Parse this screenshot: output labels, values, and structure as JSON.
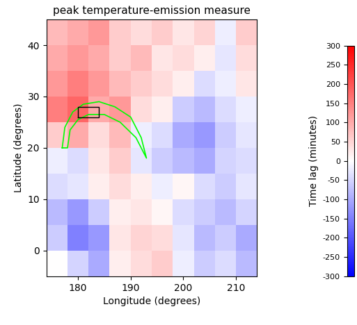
{
  "chart_data": {
    "type": "heatmap",
    "title": "peak temperature-emission measure",
    "x_label": "Longitude (degrees)",
    "y_label": "Latitude (degrees)",
    "x": [
      174,
      178,
      182,
      186,
      190,
      194,
      198,
      202,
      206,
      210,
      214
    ],
    "y": [
      -5,
      0,
      5,
      10,
      15,
      20,
      25,
      30,
      35,
      40,
      45
    ],
    "cells": [
      [
        0,
        -50,
        -100,
        20,
        40,
        60,
        -20,
        -60,
        -40,
        -80
      ],
      [
        -60,
        -150,
        -120,
        30,
        50,
        40,
        -30,
        -80,
        -60,
        -100
      ],
      [
        -80,
        -120,
        -60,
        20,
        30,
        10,
        -40,
        -60,
        -80,
        -50
      ],
      [
        -40,
        -30,
        20,
        40,
        20,
        -20,
        10,
        -40,
        -60,
        -30
      ],
      [
        -20,
        -40,
        30,
        60,
        -30,
        -60,
        -80,
        -100,
        -50,
        -40
      ],
      [
        60,
        100,
        40,
        80,
        -20,
        -40,
        -100,
        -120,
        -60,
        -30
      ],
      [
        150,
        180,
        100,
        120,
        40,
        20,
        -60,
        -80,
        -40,
        -20
      ],
      [
        120,
        150,
        120,
        80,
        60,
        40,
        20,
        -40,
        -20,
        30
      ],
      [
        100,
        120,
        100,
        60,
        80,
        30,
        40,
        20,
        -30,
        40
      ],
      [
        80,
        100,
        120,
        60,
        40,
        60,
        30,
        50,
        -20,
        60
      ]
    ],
    "xlim": [
      174,
      214
    ],
    "ylim": [
      -5,
      45
    ],
    "xticks": [
      180,
      190,
      200,
      210
    ],
    "yticks": [
      0,
      10,
      20,
      30,
      40
    ],
    "colorbar_label": "Time lag (minutes)",
    "colorbar_range": [
      -300,
      300
    ],
    "colorbar_ticks": [
      -300,
      -250,
      -200,
      -150,
      -100,
      -50,
      0,
      50,
      100,
      150,
      200,
      250,
      300
    ],
    "loop": {
      "lon": [
        177,
        177.5,
        179,
        181,
        184,
        187,
        190,
        192,
        193,
        191,
        188,
        185,
        182,
        180,
        178.5,
        178,
        177
      ],
      "lat": [
        20,
        24,
        27,
        28.5,
        29,
        28,
        26,
        22,
        18,
        22,
        25,
        26.5,
        26.5,
        25.5,
        23.5,
        20,
        20
      ],
      "color": "#00ff00"
    },
    "box": {
      "lon": [
        180,
        184
      ],
      "lat": [
        26,
        28
      ],
      "color": "#000000"
    }
  }
}
